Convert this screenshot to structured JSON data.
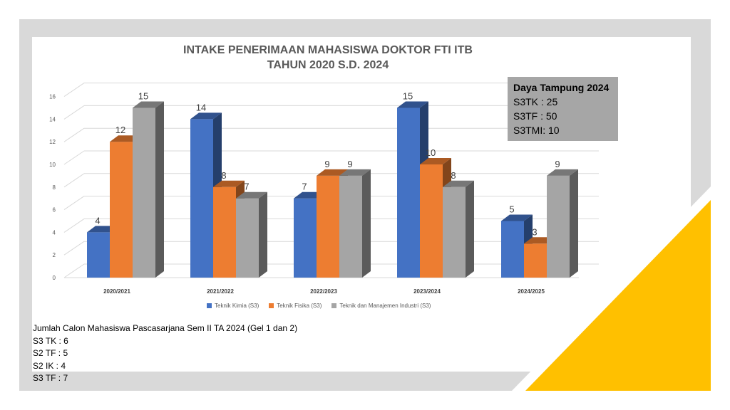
{
  "colors": {
    "frame": "#d9d9d9",
    "accent": "#ffc000"
  },
  "chart_data": {
    "type": "bar",
    "title": "INTAKE PENERIMAAN MAHASISWA DOKTOR FTI ITB",
    "subtitle": "TAHUN 2020  S.D. 2024",
    "categories": [
      "2020/2021",
      "2021/2022",
      "2022/2023",
      "2023/2024",
      "2024/2025"
    ],
    "series": [
      {
        "name": "Teknik Kimia (S3)",
        "values": [
          4,
          14,
          7,
          15,
          5
        ],
        "color": "#4472c4"
      },
      {
        "name": "Teknik Fisika (S3)",
        "values": [
          12,
          8,
          9,
          10,
          3
        ],
        "color": "#ed7d31"
      },
      {
        "name": "Teknik dan Manajemen Industri (S3)",
        "values": [
          15,
          7,
          9,
          8,
          9
        ],
        "color": "#a5a5a5"
      }
    ],
    "ylim": [
      0,
      16
    ],
    "yticks": [
      "0",
      "2",
      "4",
      "6",
      "8",
      "10",
      "12",
      "14",
      "16"
    ],
    "grid": true,
    "legend": "bottom"
  },
  "capacity_box": {
    "title": "Daya Tampung 2024",
    "lines": [
      "S3TK  :  25",
      "S3TF  :   50",
      "S3TMI:  10"
    ]
  },
  "notes": {
    "heading": "Jumlah Calon Mahasiswa Pascasarjana Sem II TA 2024 (Gel 1 dan 2)",
    "lines": [
      "S3 TK  : 6",
      "S2 TF  : 5",
      "S2 IK   : 4",
      "S3 TF   : 7"
    ]
  }
}
